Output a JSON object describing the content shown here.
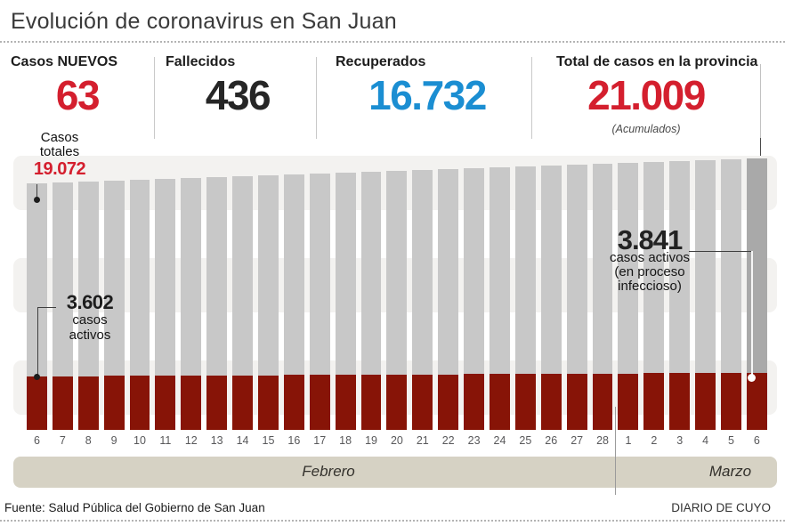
{
  "header": {
    "title": "Evolución de coronavirus en San Juan"
  },
  "stats": [
    {
      "label": "Casos NUEVOS",
      "value": "63",
      "color": "#d41f2e"
    },
    {
      "label": "Fallecidos",
      "value": "436",
      "color": "#262626"
    },
    {
      "label": "Recuperados",
      "value": "16.732",
      "color": "#1b8ed2"
    },
    {
      "label": "Total de casos en la provincia",
      "value": "21.009",
      "note": "(Acumulados)",
      "color": "#d41f2e"
    }
  ],
  "annotations": {
    "first_total": {
      "label_lines": [
        "Casos",
        "totales"
      ],
      "value": "19.072"
    },
    "first_active": {
      "value": "3.602",
      "label_lines": [
        "casos",
        "activos"
      ]
    },
    "last_active": {
      "value": "3.841",
      "label_lines": [
        "casos activos",
        "(en proceso",
        "infeccioso)"
      ]
    }
  },
  "chart_data": {
    "type": "bar",
    "stacked": true,
    "title": "Evolución de coronavirus en San Juan",
    "categories": [
      "6",
      "7",
      "8",
      "9",
      "10",
      "11",
      "12",
      "13",
      "14",
      "15",
      "16",
      "17",
      "18",
      "19",
      "20",
      "21",
      "22",
      "23",
      "24",
      "25",
      "26",
      "27",
      "28",
      "1",
      "2",
      "3",
      "4",
      "5",
      "6"
    ],
    "x_axis_months": [
      {
        "label": "Febrero",
        "first_day": 6,
        "last_day": 28,
        "count": 23
      },
      {
        "label": "Marzo",
        "first_day": 1,
        "last_day": 6,
        "count": 6
      }
    ],
    "series": [
      {
        "name": "Casos totales",
        "color": "#c8c8c8",
        "values": [
          19072,
          19141,
          19210,
          19280,
          19349,
          19418,
          19487,
          19556,
          19626,
          19695,
          19764,
          19833,
          19902,
          19972,
          20041,
          20110,
          20179,
          20248,
          20318,
          20387,
          20456,
          20525,
          20594,
          20663,
          20733,
          20802,
          20871,
          20940,
          21009
        ]
      },
      {
        "name": "Casos activos",
        "color": "#871407",
        "values": [
          3602,
          3611,
          3619,
          3628,
          3636,
          3645,
          3653,
          3662,
          3670,
          3679,
          3687,
          3696,
          3704,
          3713,
          3721,
          3730,
          3738,
          3747,
          3755,
          3764,
          3772,
          3781,
          3789,
          3798,
          3806,
          3815,
          3823,
          3832,
          3841
        ]
      }
    ],
    "ylim": [
      0,
      21009
    ],
    "annotated_points": {
      "first_day_total": 19072,
      "first_day_active": 3602,
      "last_day_active": 3841,
      "last_day_total_accumulated": 21009
    },
    "legend": "none",
    "grid": "off"
  },
  "footer": {
    "source": "Fuente: Salud Pública del Gobierno de San Juan",
    "credit": "DIARIO DE CUYO"
  },
  "colors": {
    "accent_red": "#d41f2e",
    "blue": "#1b8ed2",
    "bar_gray": "#c8c8c8",
    "bar_gray_highlight": "#a9a9a9",
    "bar_red": "#871407",
    "band": "#f3f2f0",
    "month_band": "#d6d2c4"
  }
}
